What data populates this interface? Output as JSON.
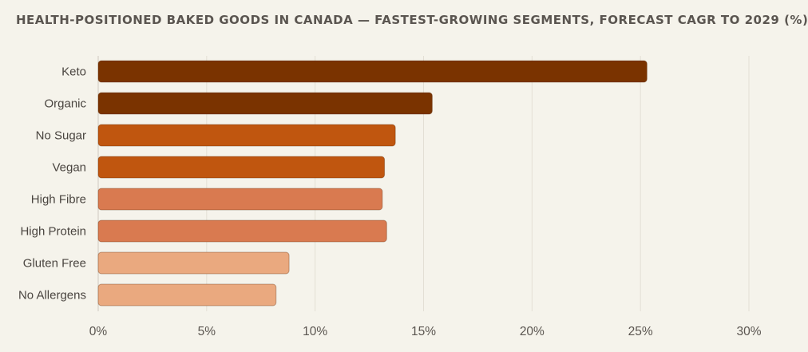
{
  "chart_data": {
    "type": "bar",
    "orientation": "horizontal",
    "title": "HEALTH-POSITIONED BAKED GOODS IN CANADA — FASTEST-GROWING SEGMENTS, FORECAST CAGR TO 2029 (%)",
    "categories": [
      "Keto",
      "Organic",
      "No Sugar",
      "Vegan",
      "High Fibre",
      "High Protein",
      "Gluten Free",
      "No Allergens"
    ],
    "values": [
      25.3,
      15.4,
      13.7,
      13.2,
      13.1,
      13.3,
      8.8,
      8.2
    ],
    "colors": [
      "#7a3300",
      "#7a3300",
      "#c0560f",
      "#c0560f",
      "#d97a50",
      "#d97a50",
      "#eaa97f",
      "#eaa97f"
    ],
    "xlim": [
      0,
      30
    ],
    "xticks": [
      0,
      5,
      10,
      15,
      20,
      25,
      30
    ],
    "xtick_labels": [
      "0%",
      "5%",
      "10%",
      "15%",
      "20%",
      "25%",
      "30%"
    ],
    "grid": true,
    "xlabel": "",
    "ylabel": ""
  }
}
